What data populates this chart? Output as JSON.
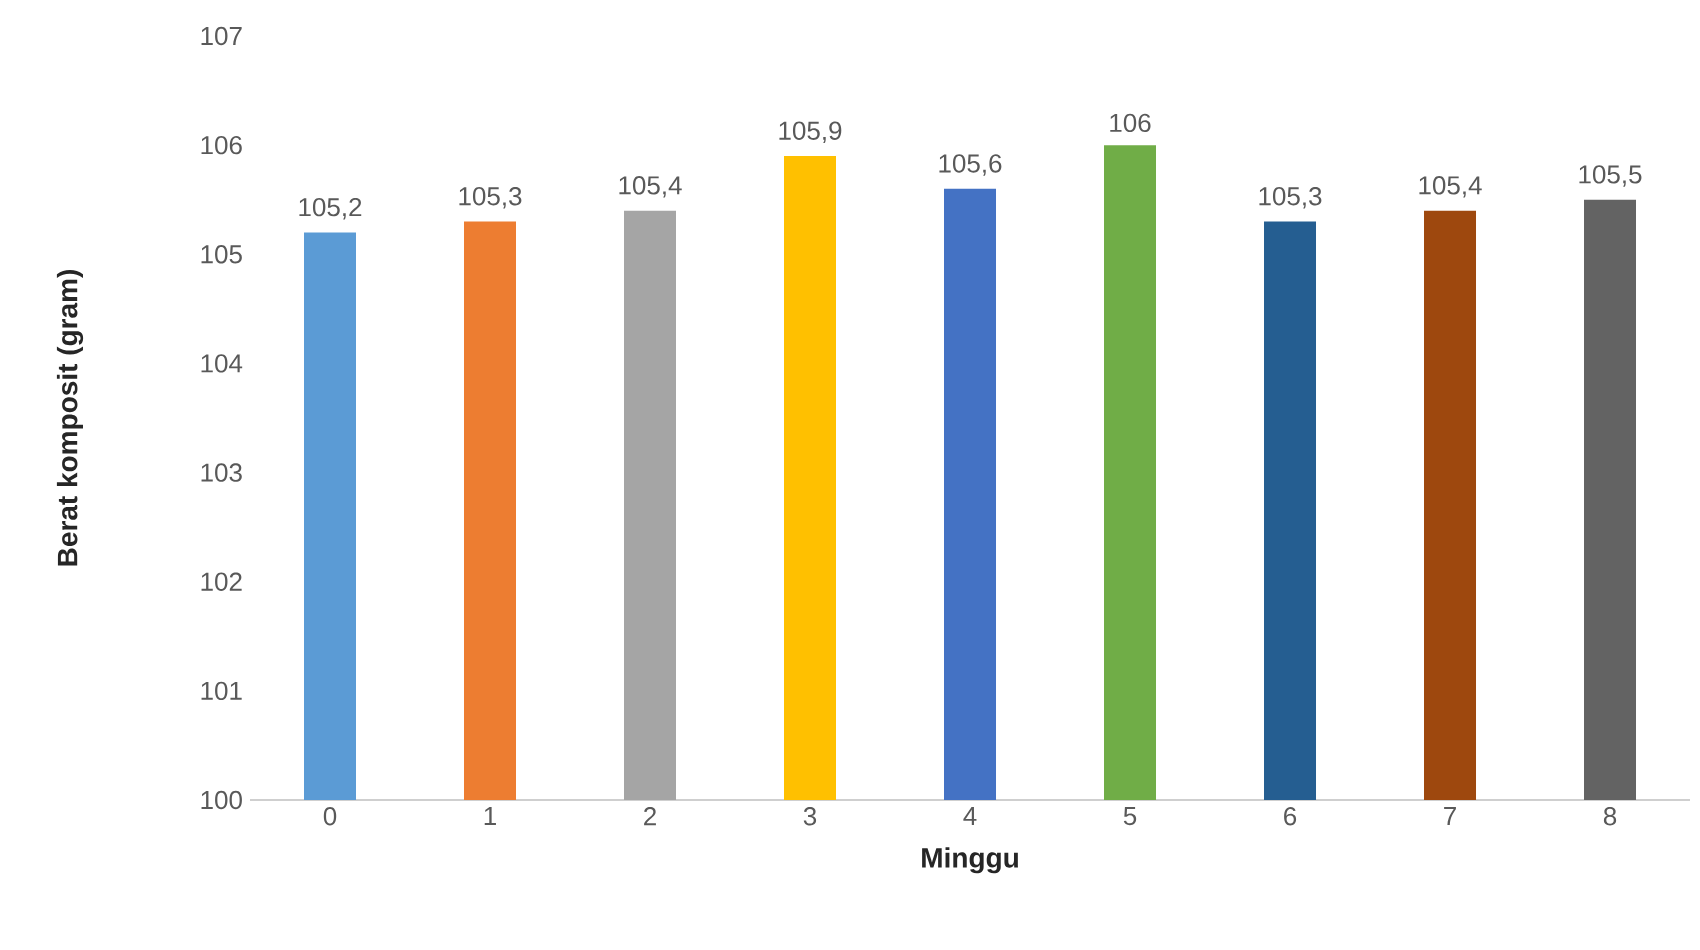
{
  "chart_data": {
    "type": "bar",
    "xlabel": "Minggu",
    "ylabel": "Berat komposit (gram)",
    "categories": [
      "0",
      "1",
      "2",
      "3",
      "4",
      "5",
      "6",
      "7",
      "8"
    ],
    "values": [
      105.2,
      105.3,
      105.4,
      105.9,
      105.6,
      106,
      105.3,
      105.4,
      105.5
    ],
    "value_labels": [
      "105,2",
      "105,3",
      "105,4",
      "105,9",
      "105,6",
      "106",
      "105,3",
      "105,4",
      "105,5"
    ],
    "colors": [
      "#5b9bd5",
      "#ed7d31",
      "#a5a5a5",
      "#ffc000",
      "#4472c4",
      "#70ad47",
      "#255e91",
      "#9e480e",
      "#636363"
    ],
    "ylim": [
      100,
      107
    ],
    "yticks": [
      100,
      101,
      102,
      103,
      104,
      105,
      106,
      107
    ],
    "grid": false
  }
}
